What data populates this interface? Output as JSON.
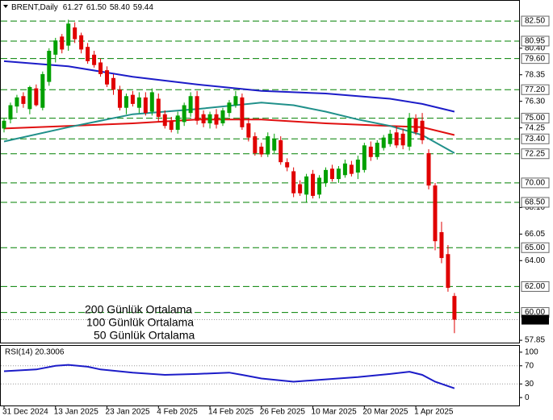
{
  "chart_data": {
    "type": "candlestick",
    "title": "BRENT,Daily",
    "header_labels": [
      "61.27",
      "61.50",
      "58.40",
      "59.44"
    ],
    "categories": [
      "31 Dec 2024",
      null,
      null,
      null,
      null,
      null,
      null,
      null,
      "13 Jan 2025",
      null,
      null,
      null,
      null,
      null,
      null,
      null,
      "23 Jan 2025",
      null,
      null,
      null,
      null,
      null,
      null,
      null,
      "4 Feb 2025",
      null,
      null,
      null,
      null,
      null,
      null,
      null,
      "14 Feb 2025",
      null,
      null,
      null,
      null,
      null,
      null,
      null,
      "26 Feb 2025",
      null,
      null,
      null,
      null,
      null,
      null,
      null,
      "10 Mar 2025",
      null,
      null,
      null,
      null,
      null,
      null,
      null,
      "20 Mar 2025",
      null,
      null,
      null,
      null,
      null,
      null,
      null,
      "1 Apr 2025",
      null,
      null,
      null,
      null,
      null,
      null
    ],
    "open": [
      74.2,
      74.9,
      75.9,
      76.7,
      75.7,
      77.3,
      75.8,
      77.8,
      79.9,
      81.3,
      80.6,
      82.0,
      81.4,
      80.5,
      79.9,
      79.3,
      78.7,
      78.1,
      77.2,
      75.8,
      76.8,
      75.8,
      76.6,
      75.5,
      76.5,
      75.3,
      74.8,
      74.1,
      74.7,
      75.4,
      76.7,
      75.3,
      74.6,
      75.3,
      74.6,
      75.4,
      76.0,
      76.6,
      74.6,
      73.6,
      72.8,
      72.2,
      72.5,
      73.3,
      71.6,
      70.9,
      69.9,
      69.1,
      70.7,
      69.1,
      70.0,
      71.1,
      70.3,
      70.6,
      71.4,
      70.8,
      71.0,
      72.8,
      72.0,
      72.7,
      73.0,
      73.9,
      73.8,
      72.8,
      75.0,
      74.8,
      72.3,
      69.8,
      66.2,
      64.5,
      61.27
    ],
    "high": [
      75.0,
      76.2,
      76.8,
      77.0,
      77.5,
      77.6,
      78.6,
      80.4,
      81.2,
      81.5,
      82.6,
      82.4,
      81.6,
      80.8,
      80.2,
      79.6,
      79.0,
      78.4,
      77.5,
      76.9,
      77.1,
      77.0,
      77.0,
      77.3,
      76.9,
      75.6,
      75.1,
      75.5,
      76.2,
      77.0,
      77.1,
      75.6,
      75.5,
      75.7,
      75.8,
      76.4,
      77.1,
      76.9,
      75.0,
      73.9,
      73.1,
      73.9,
      73.8,
      73.6,
      71.9,
      71.2,
      70.2,
      70.7,
      71.0,
      70.6,
      71.2,
      71.4,
      71.3,
      71.8,
      71.7,
      72.1,
      73.1,
      73.2,
      73.3,
      73.7,
      74.1,
      74.4,
      74.2,
      75.4,
      75.3,
      75.4,
      72.6,
      70.0,
      67.0,
      65.2,
      61.5
    ],
    "low": [
      73.9,
      74.6,
      75.4,
      75.8,
      75.3,
      75.9,
      75.6,
      77.5,
      79.3,
      80.0,
      80.2,
      80.8,
      80.0,
      79.2,
      78.9,
      78.2,
      77.4,
      76.8,
      75.6,
      75.3,
      75.9,
      75.4,
      75.2,
      75.2,
      74.7,
      74.2,
      73.9,
      73.8,
      74.4,
      75.1,
      74.5,
      74.3,
      74.2,
      74.2,
      74.4,
      75.1,
      75.8,
      74.1,
      73.2,
      72.1,
      72.0,
      72.0,
      72.3,
      71.4,
      70.9,
      68.9,
      69.0,
      68.5,
      68.8,
      68.8,
      69.7,
      70.1,
      70.0,
      70.4,
      70.5,
      70.3,
      70.8,
      71.7,
      71.8,
      72.5,
      72.8,
      72.7,
      72.6,
      72.5,
      73.7,
      73.0,
      69.5,
      64.8,
      63.8,
      61.6,
      58.4
    ],
    "close": [
      74.8,
      76.0,
      76.6,
      76.1,
      77.4,
      76.0,
      78.4,
      80.2,
      81.0,
      80.3,
      82.3,
      81.1,
      80.3,
      79.4,
      79.1,
      78.4,
      77.6,
      77.2,
      75.8,
      76.7,
      76.1,
      76.6,
      75.4,
      77.0,
      75.1,
      74.4,
      74.1,
      75.2,
      76.0,
      76.7,
      74.8,
      74.6,
      75.3,
      74.5,
      75.6,
      76.2,
      76.7,
      74.3,
      73.5,
      72.3,
      72.2,
      73.6,
      73.4,
      71.6,
      71.2,
      69.2,
      69.2,
      70.5,
      69.0,
      70.4,
      71.0,
      70.3,
      71.1,
      71.5,
      70.7,
      71.8,
      72.9,
      72.0,
      73.1,
      73.5,
      73.8,
      72.9,
      72.9,
      75.0,
      73.9,
      73.3,
      69.8,
      65.5,
      64.2,
      61.9,
      59.44
    ],
    "up_color": "#00a000",
    "down_color": "#e00000",
    "ylim": [
      57.67,
      84.06
    ],
    "yticks": [
      {
        "value": 80.4,
        "label": "80.40"
      },
      {
        "value": 78.35,
        "label": "78.35"
      },
      {
        "value": 76.3,
        "label": "76.30"
      },
      {
        "value": 74.25,
        "label": "74.25"
      },
      {
        "value": 68.1,
        "label": "68.10"
      },
      {
        "value": 66.05,
        "label": "66.05"
      },
      {
        "value": 64,
        "label": "64.00"
      },
      {
        "value": 57.85,
        "label": "57.85"
      }
    ],
    "levels": [
      {
        "value": 82.5,
        "label": "82.50"
      },
      {
        "value": 80.95,
        "label": "80.95"
      },
      {
        "value": 79.6,
        "label": "79.60"
      },
      {
        "value": 77.2,
        "label": "77.20"
      },
      {
        "value": 75,
        "label": "75.00"
      },
      {
        "value": 73.4,
        "label": "73.40"
      },
      {
        "value": 72.25,
        "label": "72.25"
      },
      {
        "value": 70,
        "label": "70.00"
      },
      {
        "value": 68.5,
        "label": "68.50"
      },
      {
        "value": 65,
        "label": "65.00"
      },
      {
        "value": 62,
        "label": "62.00"
      },
      {
        "value": 60,
        "label": "60.00"
      }
    ],
    "level_color": "#008000",
    "current_price": {
      "value": 59.44,
      "label": "59.44"
    },
    "moving_averages": [
      {
        "name": "200 Günlük Ortalama",
        "color": "#1c1cc8",
        "x": [
          0,
          10,
          20,
          30,
          40,
          50,
          60,
          65,
          70
        ],
        "values": [
          79.4,
          79.0,
          78.2,
          77.6,
          77.1,
          76.9,
          76.5,
          76.1,
          75.5
        ]
      },
      {
        "name": "100 Günlük Ortalama",
        "color": "#e01010",
        "x": [
          0,
          10,
          20,
          30,
          40,
          50,
          60,
          65,
          70
        ],
        "values": [
          74.2,
          74.4,
          74.6,
          74.9,
          74.9,
          74.6,
          74.4,
          74.3,
          73.7
        ]
      },
      {
        "name": "50 Günlük Ortalama",
        "color": "#20908a",
        "x": [
          0,
          10,
          20,
          30,
          40,
          45,
          50,
          55,
          60,
          65,
          70
        ],
        "values": [
          73.2,
          74.3,
          75.3,
          75.7,
          76.2,
          76.0,
          75.5,
          74.9,
          74.4,
          73.7,
          72.3
        ]
      }
    ],
    "rsi": {
      "title": "RSI(14) 20.3006",
      "color": "#1c1cc8",
      "ylim": [
        -17.5,
        114
      ],
      "yticks": [
        100,
        70,
        30,
        0
      ],
      "levels": [
        70,
        30
      ],
      "x": [
        0,
        5,
        8,
        10,
        13,
        15,
        20,
        25,
        30,
        35,
        37,
        40,
        45,
        50,
        55,
        60,
        63,
        65,
        67,
        70
      ],
      "values": [
        58,
        62,
        70,
        72,
        68,
        62,
        55,
        50,
        52,
        55,
        50,
        42,
        35,
        40,
        45,
        52,
        57,
        50,
        35,
        20.3006
      ]
    }
  }
}
